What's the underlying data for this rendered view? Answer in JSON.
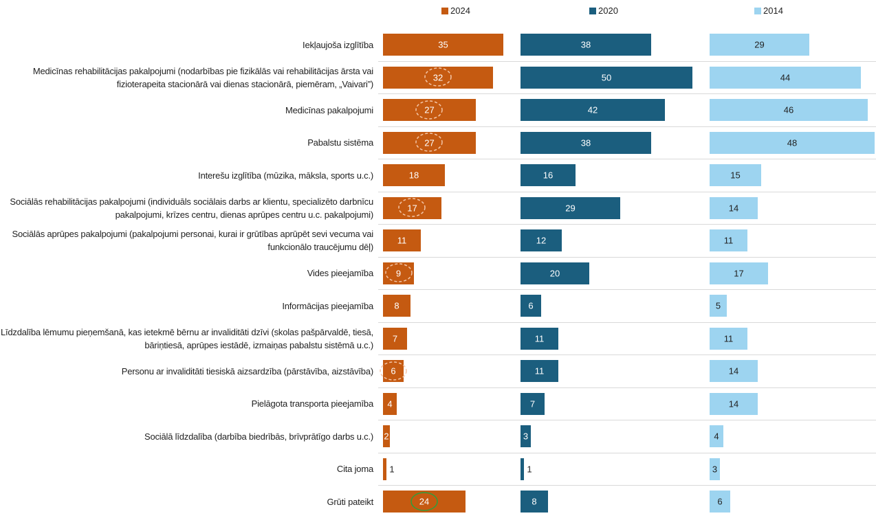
{
  "chart_data": {
    "type": "bar",
    "categories": [
      "Iekļaujoša izglītība",
      "Medicīnas rehabilitācijas pakalpojumi  (nodarbības pie fizikālās vai rehabilitācijas ārsta vai fizioterapeita stacionārā vai dienas stacionārā, piemēram, „Vaivari”)",
      "Medicīnas pakalpojumi",
      "Pabalstu sistēma",
      "Interešu izglītība (mūzika, māksla, sports u.c.)",
      "Sociālās rehabilitācijas pakalpojumi (individuāls sociālais darbs ar klientu, specializēto darbnīcu pakalpojumi, krīzes centru, dienas aprūpes centru u.c. pakalpojumi)",
      "Sociālās aprūpes pakalpojumi (pakalpojumi personai, kurai ir grūtības aprūpēt sevi vecuma vai funkcionālo traucējumu dēļ)",
      "Vides pieejamība",
      "Informācijas pieejamība",
      "Līdzdalība lēmumu pieņemšanā, kas ietekmē bērnu ar invaliditāti dzīvi (skolas pašpārvaldē, tiesā, bāriņtiesā, aprūpes iestādē, izmaiņas pabalstu sistēmā u.c.)",
      "Personu ar invaliditāti tiesiskā aizsardzība (pārstāvība, aizstāvība)",
      "Pielāgota transporta pieejamība",
      "Sociālā līdzdalība (darbība biedrībās, brīvprātīgo darbs u.c.)",
      "Cita joma",
      "Grūti pateikt"
    ],
    "series": [
      {
        "name": "2024",
        "color": "#c55a11",
        "values": [
          35,
          32,
          27,
          27,
          18,
          17,
          11,
          9,
          8,
          7,
          6,
          4,
          2,
          1,
          24
        ]
      },
      {
        "name": "2020",
        "color": "#1b5e7e",
        "values": [
          38,
          50,
          42,
          38,
          16,
          29,
          12,
          20,
          6,
          11,
          11,
          7,
          3,
          1,
          8
        ]
      },
      {
        "name": "2014",
        "color": "#9dd4f0",
        "values": [
          29,
          44,
          46,
          48,
          15,
          14,
          11,
          17,
          5,
          11,
          14,
          14,
          4,
          3,
          6
        ]
      }
    ]
  }
}
